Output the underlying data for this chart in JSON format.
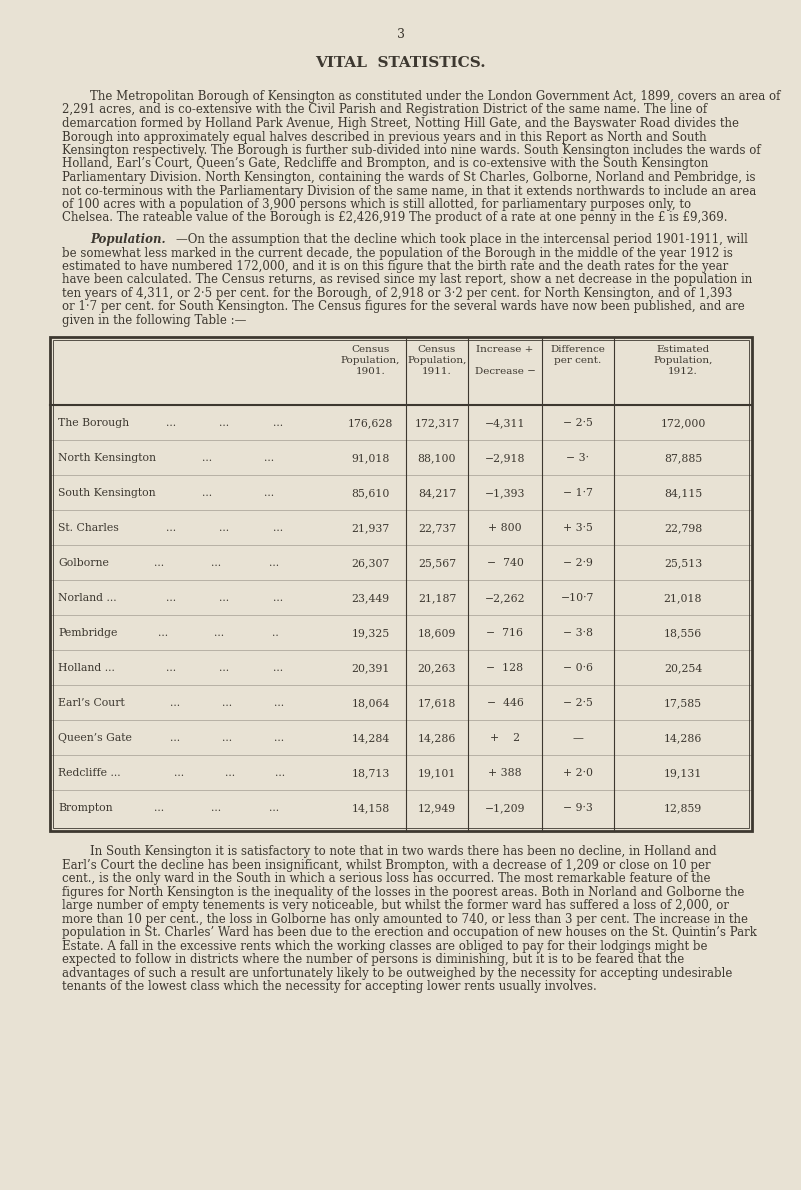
{
  "page_number": "3",
  "title": "VITAL  STATISTICS.",
  "bg_color": "#e8e2d4",
  "text_color": "#3d3830",
  "para1": "The Metropolitan Borough of Kensington as constituted under the London Government Act, 1899, covers an area of 2,291 acres, and is co-extensive with the Civil Parish and Registration District of the same name.    The line of demarcation formed by Holland Park Avenue, High Street, Notting Hill Gate, and the Bayswater Road divides the Borough into approximately equal halves described in previous years and in this Report as North and South Kensington respectively. The Borough is further sub-divided into nine wards.  South Kensington includes the wards of Holland, Earl’s Court, Queen’s Gate, Redcliffe and Brompton, and is co-extensive with the South Kensington Parliamentary Division.    North Kensington, containing the wards of St  Charles, Golborne, Norland and Pembridge, is not co-terminous with the Parliamentary Division of the same name, in that it extends northwards to include an area of 100 acres with a population of 3,900 persons which is still allotted, for parliamentary purposes only, to Chelsea.    The rateable value of the Borough is £2,426,919    The product of a rate at one penny in the £ is £9,369.",
  "para2_bold": "Population.",
  "para2_rest": "—On the assumption that the decline which took place in the intercensal period 1901-1911, will be somewhat less marked in the current decade, the population of the Borough in the middle of the year 1912 is estimated to have numbered 172,000, and it is on this figure that the birth rate and  the death rates for the year have been calculated.   The Census returns, as revised since my last report, show a net decrease in the population in ten years of 4,311, or 2·5 per cent. for the Borough, of 2,918 or 3·2 per cent. for North Kensington, and of 1,393 or 1·7 per cent. for South Kensington.   The Census figures for the several wards have now been published, and are given in the following Table :—",
  "col_headers_line1": [
    "Census",
    "Census",
    "Increase +",
    "Difference",
    "Estimated"
  ],
  "col_headers_line2": [
    "Population,",
    "Population,",
    "",
    "per cent.",
    "Population,"
  ],
  "col_headers_line3": [
    "1901.",
    "1911.",
    "Decrease −",
    "",
    "1912."
  ],
  "rows": [
    [
      "The Borough",
      "...",
      "...",
      "...",
      "176,628",
      "172,317",
      "−4,311",
      "− 2·5",
      "172,000"
    ],
    [
      "North Kensington",
      "...",
      "...",
      "",
      "91,018",
      "88,100",
      "−2,918",
      "− 3·",
      "87,885"
    ],
    [
      "South Kensington",
      "...",
      "...",
      "",
      "85,610",
      "84,217",
      "−1,393",
      "− 1·7",
      "84,115"
    ],
    [
      "St. Charles",
      "...",
      "...",
      "...",
      "21,937",
      "22,737",
      "+ 800",
      "+ 3·5",
      "22,798"
    ],
    [
      "Golborne",
      "...",
      "...",
      "...",
      "26,307",
      "25,567",
      "−  740",
      "− 2·9",
      "25,513"
    ],
    [
      "Norland ...",
      "...",
      "...",
      "...",
      "23,449",
      "21,187",
      "−2,262",
      "−10·7",
      "21,018"
    ],
    [
      "Pembridge",
      "...",
      "...",
      "..",
      "19,325",
      "18,609",
      "−  716",
      "− 3·8",
      "18,556"
    ],
    [
      "Holland ...",
      "...",
      "...",
      "...",
      "20,391",
      "20,263",
      "−  128",
      "− 0·6",
      "20,254"
    ],
    [
      "Earl’s Court",
      "...",
      "...",
      "...",
      "18,064",
      "17,618",
      "−  446",
      "− 2·5",
      "17,585"
    ],
    [
      "Queen’s Gate",
      "...",
      "...",
      "...",
      "14,284",
      "14,286",
      "+    2",
      "—",
      "14,286"
    ],
    [
      "Redcliffe ...",
      "...",
      "...",
      "...",
      "18,713",
      "19,101",
      "+ 388",
      "+ 2·0",
      "19,131"
    ],
    [
      "Brompton",
      "...",
      "...",
      "...",
      "14,158",
      "12,949",
      "−1,209",
      "− 9·3",
      "12,859"
    ]
  ],
  "para3": "In South Kensington it is satisfactory to note that in two wards there has been no decline, in Holland and Earl’s Court the decline has been insignificant, whilst Brompton, with a decrease of 1,209 or close on 10 per cent., is the only ward in the South in which a serious loss has occurred. The most remarkable feature of the figures for North Kensington is the inequality of the losses in the poorest areas.  Both in Norland and Golborne the large number of empty tenements is very noticeable, but whilst the former ward has suffered a loss of 2,000, or more than 10 per cent., the loss in Golborne has only amounted to 740, or less than 3 per cent.   The increase in the population in St. Charles’ Ward has been due to the erection and occupation of new houses on the St. Quintin’s Park Estate.   A fall in the excessive rents which the working classes are obliged to pay for their lodgings might be expected to follow in districts where the number of persons is diminishing, but it is to be feared that the advantages of such a result are unfortunately likely to be outweighed by the necessity for accepting undesirable tenants of the lowest class which the necessity for accepting lower rents usually involves."
}
